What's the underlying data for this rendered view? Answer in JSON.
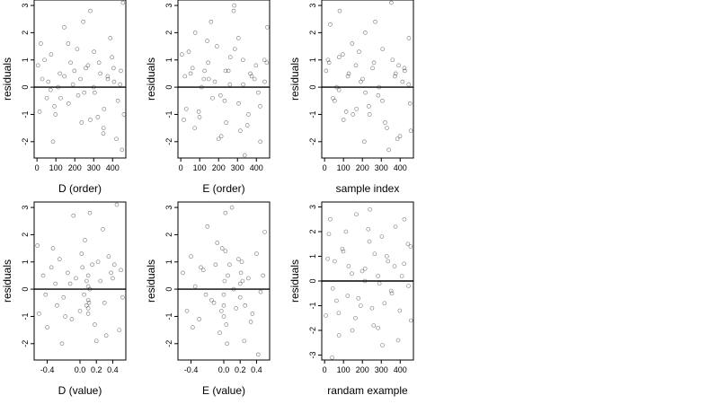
{
  "chart_data": [
    {
      "type": "scatter",
      "xlabel": "D (order)",
      "ylabel": "residuals",
      "xlim": [
        -15,
        470
      ],
      "ylim": [
        -2.6,
        3.2
      ],
      "xticks": [
        0,
        100,
        200,
        300,
        400
      ],
      "yticks": [
        -2,
        -1,
        0,
        1,
        2,
        3
      ],
      "hline": 0,
      "series": [
        {
          "x": [
            5,
            28,
            52,
            75,
            98,
            121,
            144,
            167,
            190,
            213,
            236,
            259,
            282,
            305,
            328,
            351,
            374,
            397,
            420,
            444,
            455,
            14,
            60,
            112,
            165,
            218,
            270,
            322,
            375,
            428,
            40,
            92,
            145,
            198,
            250,
            302,
            355,
            408,
            460,
            20,
            72,
            125,
            178,
            230,
            282,
            335,
            388,
            440,
            85,
            245,
            300,
            352,
            405,
            450
          ],
          "y": [
            0.8,
            0.3,
            -0.4,
            1.2,
            -1.0,
            0.5,
            2.2,
            -0.6,
            0.1,
            1.4,
            -1.3,
            0.7,
            2.8,
            -0.2,
            0.9,
            -1.7,
            0.4,
            1.1,
            -1.9,
            0.6,
            3.1,
            -0.9,
            0.2,
            0.0,
            1.6,
            -0.3,
            0.8,
            -1.1,
            0.3,
            -0.5,
            1.0,
            -0.7,
            0.4,
            0.6,
            -0.2,
            1.3,
            -0.8,
            0.2,
            -1.0,
            1.6,
            -0.1,
            -0.4,
            0.9,
            0.3,
            -1.2,
            0.5,
            1.8,
            0.1,
            -2.0,
            2.4,
            0.0,
            -1.5,
            0.7,
            -2.3
          ]
        }
      ]
    },
    {
      "type": "scatter",
      "xlabel": "E (order)",
      "ylabel": "residuals",
      "xlim": [
        -15,
        470
      ],
      "ylim": [
        -2.6,
        3.2
      ],
      "xticks": [
        0,
        100,
        200,
        300,
        400
      ],
      "yticks": [
        -2,
        -1,
        0,
        1,
        2,
        3
      ],
      "hline": 0,
      "series": [
        {
          "x": [
            6,
            29,
            52,
            76,
            99,
            122,
            145,
            168,
            191,
            214,
            237,
            260,
            283,
            306,
            329,
            352,
            375,
            398,
            421,
            444,
            458,
            16,
            62,
            110,
            160,
            210,
            262,
            315,
            368,
            420,
            42,
            95,
            148,
            200,
            252,
            305,
            358,
            410,
            455,
            22,
            74,
            126,
            180,
            232,
            286,
            338,
            390,
            442,
            280,
            330,
            140,
            240
          ],
          "y": [
            1.2,
            -0.8,
            0.5,
            2.0,
            -1.1,
            0.3,
            0.9,
            -0.4,
            1.5,
            -1.8,
            0.6,
            0.1,
            3.0,
            -0.6,
            1.0,
            -1.4,
            0.4,
            0.8,
            -2.0,
            0.2,
            2.2,
            -1.2,
            0.7,
            0.0,
            2.4,
            -0.3,
            1.1,
            -1.6,
            0.5,
            -0.7,
            1.3,
            -0.9,
            0.3,
            -1.9,
            0.6,
            1.8,
            -1.0,
            -0.2,
            0.9,
            0.4,
            -1.5,
            0.6,
            0.2,
            -0.5,
            1.4,
            -2.5,
            0.3,
            1.0,
            2.8,
            0.1,
            1.7,
            -1.3
          ]
        }
      ]
    },
    {
      "type": "scatter",
      "xlabel": "sample index",
      "ylabel": "residuals",
      "xlim": [
        -15,
        470
      ],
      "ylim": [
        -2.6,
        3.2
      ],
      "xticks": [
        0,
        100,
        200,
        300,
        400
      ],
      "yticks": [
        -2,
        -1,
        0,
        1,
        2,
        3
      ],
      "hline": 0,
      "series": [
        {
          "x": [
            8,
            30,
            53,
            77,
            100,
            123,
            146,
            169,
            192,
            215,
            238,
            261,
            284,
            307,
            330,
            353,
            376,
            399,
            422,
            445,
            452,
            18,
            64,
            114,
            166,
            216,
            268,
            320,
            372,
            424,
            44,
            96,
            150,
            202,
            254,
            306,
            360,
            412,
            456,
            24,
            76,
            128,
            182,
            234,
            288,
            340,
            392,
            446,
            210,
            385,
            80
          ],
          "y": [
            0.6,
            2.3,
            -0.5,
            1.1,
            -1.2,
            0.4,
            1.6,
            -0.8,
            0.2,
            2.0,
            -1.0,
            0.9,
            -0.3,
            1.4,
            -1.5,
            3.1,
            0.5,
            -1.8,
            0.7,
            0.1,
            -0.6,
            1.0,
            0.0,
            -0.9,
            0.8,
            -0.2,
            2.4,
            -1.3,
            0.4,
            0.6,
            -0.4,
            1.2,
            -1.0,
            0.3,
            0.7,
            -0.5,
            1.0,
            0.2,
            -1.6,
            0.9,
            -0.1,
            0.5,
            1.3,
            -0.7,
            0.0,
            -2.3,
            0.8,
            1.8,
            -2.0,
            -1.9,
            2.8
          ]
        }
      ]
    },
    {
      "type": "scatter",
      "xlabel": "D (value)",
      "ylabel": "residuals",
      "xlim": [
        -0.56,
        0.56
      ],
      "ylim": [
        -2.6,
        3.2
      ],
      "xticks": [
        -0.4,
        0.0,
        0.2,
        0.4
      ],
      "xticklabels": [
        "-0.4",
        "0.0",
        "0.2",
        "0.4"
      ],
      "yticks": [
        -2,
        -1,
        0,
        1,
        2,
        3
      ],
      "hline": 0,
      "series": [
        {
          "x": [
            -0.52,
            -0.5,
            -0.45,
            -0.4,
            -0.35,
            -0.3,
            -0.28,
            -0.25,
            -0.2,
            -0.15,
            -0.1,
            -0.08,
            -0.05,
            0.0,
            0.02,
            0.05,
            0.08,
            0.1,
            0.1,
            0.1,
            0.1,
            0.11,
            0.12,
            0.15,
            0.2,
            0.22,
            0.25,
            0.3,
            0.35,
            0.4,
            0.45,
            0.48,
            0.5,
            0.52,
            -0.42,
            -0.33,
            -0.18,
            -0.12,
            0.03,
            0.18,
            0.28,
            0.38,
            -0.22,
            0.06,
            0.32,
            0.42,
            0.12,
            0.08,
            0.1
          ],
          "y": [
            1.6,
            -0.9,
            0.5,
            -1.4,
            0.8,
            0.2,
            -0.6,
            1.1,
            -0.3,
            0.6,
            -1.1,
            2.7,
            0.4,
            -0.8,
            1.3,
            -0.2,
            0.3,
            0.5,
            -0.4,
            -0.7,
            0.1,
            -0.5,
            2.8,
            0.9,
            -1.9,
            1.0,
            0.3,
            -0.5,
            1.2,
            0.4,
            3.1,
            -1.5,
            0.7,
            -0.3,
            -0.2,
            1.5,
            -1.0,
            0.2,
            0.8,
            -1.3,
            2.2,
            0.6,
            -2.0,
            1.8,
            -1.7,
            0.9,
            0.0,
            -0.6,
            -0.9
          ]
        }
      ]
    },
    {
      "type": "scatter",
      "xlabel": "E (value)",
      "ylabel": "residuals",
      "xlim": [
        -0.56,
        0.56
      ],
      "ylim": [
        -2.6,
        3.2
      ],
      "xticks": [
        -0.4,
        0.0,
        0.2,
        0.4
      ],
      "xticklabels": [
        "-0.4",
        "0.0",
        "0.2",
        "0.4"
      ],
      "yticks": [
        -2,
        -1,
        0,
        1,
        2,
        3
      ],
      "hline": 0,
      "series": [
        {
          "x": [
            -0.5,
            -0.45,
            -0.4,
            -0.35,
            -0.3,
            -0.25,
            -0.2,
            -0.15,
            -0.1,
            -0.05,
            -0.02,
            0.0,
            0.0,
            0.0,
            0.01,
            0.02,
            0.03,
            0.05,
            0.1,
            0.15,
            0.2,
            0.2,
            0.21,
            0.22,
            0.25,
            0.3,
            0.35,
            0.4,
            0.45,
            0.5,
            -0.38,
            -0.28,
            -0.12,
            -0.08,
            0.04,
            0.12,
            0.18,
            0.33,
            0.48,
            -0.22,
            0.07,
            0.26,
            0.42,
            0.02,
            -0.03,
            0.23
          ],
          "y": [
            0.6,
            -0.8,
            1.2,
            0.1,
            -1.1,
            0.7,
            2.3,
            -0.4,
            0.9,
            -1.6,
            1.5,
            -0.2,
            -0.6,
            -1.0,
            0.3,
            2.8,
            -1.3,
            0.5,
            3.0,
            -0.7,
            0.2,
            -0.3,
            0.6,
            1.0,
            -1.9,
            0.4,
            -0.9,
            1.3,
            -0.1,
            2.1,
            -1.4,
            0.8,
            -0.5,
            1.7,
            -2.0,
            0.0,
            1.1,
            -1.2,
            0.5,
            -0.2,
            0.9,
            -0.6,
            -2.4,
            1.4,
            -0.8,
            0.3
          ]
        }
      ]
    },
    {
      "type": "scatter",
      "xlabel": "randam example",
      "ylabel": "residuals",
      "xlim": [
        -15,
        470
      ],
      "ylim": [
        -3.2,
        3.2
      ],
      "xticks": [
        0,
        100,
        200,
        300,
        400
      ],
      "yticks": [
        -3,
        -2,
        -1,
        0,
        1,
        2,
        3
      ],
      "hline": 0,
      "series": [
        {
          "x": [
            7,
            30,
            53,
            76,
            99,
            122,
            145,
            168,
            191,
            214,
            237,
            260,
            283,
            306,
            329,
            352,
            375,
            398,
            421,
            444,
            455,
            17,
            63,
            113,
            163,
            213,
            265,
            317,
            370,
            422,
            43,
            94,
            147,
            199,
            251,
            303,
            356,
            409,
            457,
            23,
            75,
            127,
            179,
            231,
            283,
            336,
            389,
            441,
            40,
            240,
            290
          ],
          "y": [
            -1.4,
            2.5,
            0.8,
            -2.2,
            1.2,
            -0.6,
            0.3,
            2.7,
            -1.0,
            0.5,
            1.6,
            -1.8,
            0.2,
            -2.6,
            1.0,
            -0.4,
            2.2,
            -1.2,
            0.7,
            -0.2,
            1.4,
            0.9,
            -0.8,
            2.0,
            -1.5,
            0.0,
            1.1,
            -0.9,
            0.6,
            2.5,
            -0.3,
            1.3,
            -2.0,
            0.4,
            -1.1,
            1.8,
            -0.5,
            0.2,
            -1.6,
            1.9,
            -1.3,
            0.6,
            -0.7,
            2.1,
            -1.9,
            0.8,
            -2.4,
            1.5,
            -3.1,
            2.9,
            -0.1
          ]
        }
      ]
    }
  ]
}
